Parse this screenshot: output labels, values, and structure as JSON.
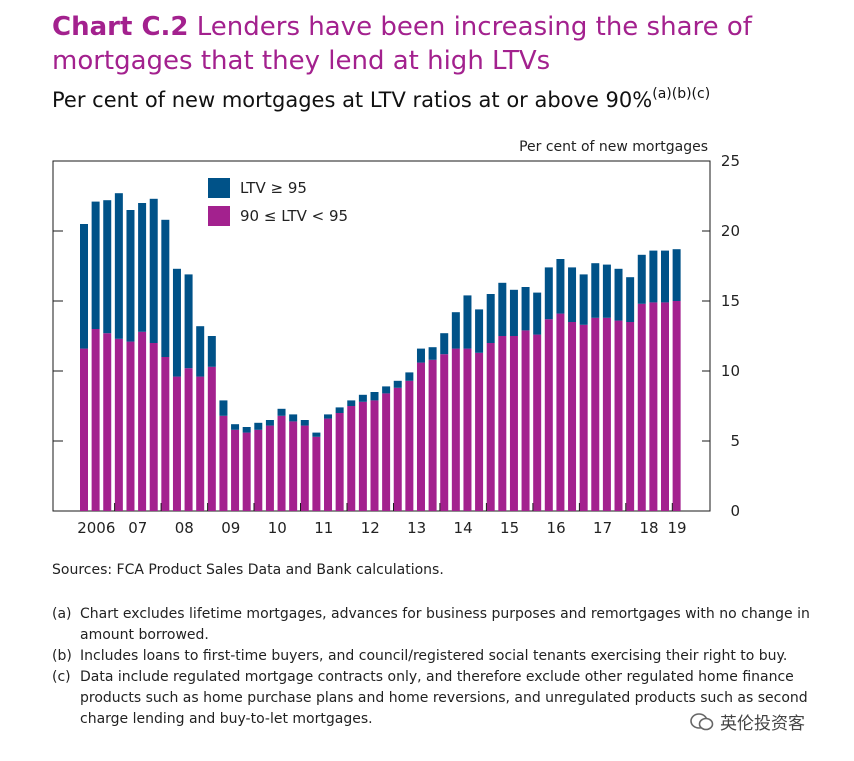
{
  "title": {
    "lead": "Chart C.2",
    "rest": "Lenders have been increasing the share of mortgages that they lend at high LTVs"
  },
  "subtitle": {
    "text": "Per cent of new mortgages at LTV ratios at or above 90%",
    "notes": "(a)(b)(c)"
  },
  "chart_data": {
    "type": "bar",
    "stacked": true,
    "ylabel": "Per cent of new mortgages",
    "ylim": [
      0,
      25
    ],
    "yticks": [
      0,
      5,
      10,
      15,
      20,
      25
    ],
    "xtick_labels": [
      "2006",
      "07",
      "08",
      "09",
      "10",
      "11",
      "12",
      "13",
      "14",
      "15",
      "16",
      "17",
      "18",
      "19"
    ],
    "series": [
      {
        "name": "90 ≤ LTV < 95",
        "color": "#a3218e",
        "values": [
          11.6,
          13.0,
          12.7,
          12.3,
          12.1,
          12.8,
          12.0,
          11.0,
          9.6,
          10.2,
          9.6,
          10.3,
          6.8,
          5.8,
          5.6,
          5.8,
          6.1,
          6.8,
          6.4,
          6.1,
          5.3,
          6.6,
          7.0,
          7.5,
          7.8,
          7.9,
          8.4,
          8.8,
          9.3,
          10.6,
          10.8,
          11.2,
          11.6,
          11.6,
          11.3,
          12.0,
          12.5,
          12.5,
          12.9,
          12.6,
          13.7,
          14.1,
          13.5,
          13.3,
          13.8,
          13.8,
          13.6,
          13.5,
          14.8,
          14.9,
          14.9,
          15.0
        ]
      },
      {
        "name": "LTV ≥ 95",
        "color": "#005288",
        "values": [
          8.9,
          9.1,
          9.5,
          10.4,
          9.4,
          9.2,
          10.3,
          9.8,
          7.7,
          6.7,
          3.6,
          2.2,
          1.1,
          0.4,
          0.4,
          0.5,
          0.4,
          0.5,
          0.5,
          0.4,
          0.3,
          0.3,
          0.4,
          0.4,
          0.5,
          0.6,
          0.5,
          0.5,
          0.6,
          1.0,
          0.9,
          1.5,
          2.6,
          3.8,
          3.1,
          3.5,
          3.8,
          3.3,
          3.1,
          3.0,
          3.7,
          3.9,
          3.9,
          3.6,
          3.9,
          3.8,
          3.7,
          3.2,
          3.5,
          3.7,
          3.7,
          3.7
        ]
      }
    ],
    "legend": {
      "placement": "top-left",
      "entries": [
        {
          "label": "LTV ≥ 95",
          "color": "#005288"
        },
        {
          "label": "90 ≤ LTV < 95",
          "color": "#a3218e"
        }
      ]
    }
  },
  "sources": "Sources: FCA Product Sales Data and Bank calculations.",
  "notes": [
    {
      "label": "(a)",
      "text": "Chart excludes lifetime mortgages, advances for business purposes and remortgages with no change in amount borrowed."
    },
    {
      "label": "(b)",
      "text": "Includes loans to first-time buyers, and council/registered social tenants exercising their right to buy."
    },
    {
      "label": "(c)",
      "text": "Data include regulated mortgage contracts only, and therefore exclude other regulated home finance products such as home purchase plans and home reversions, and unregulated products such as second charge lending and buy-to-let mortgages."
    }
  ],
  "watermark": {
    "text": "英伦投资客"
  }
}
